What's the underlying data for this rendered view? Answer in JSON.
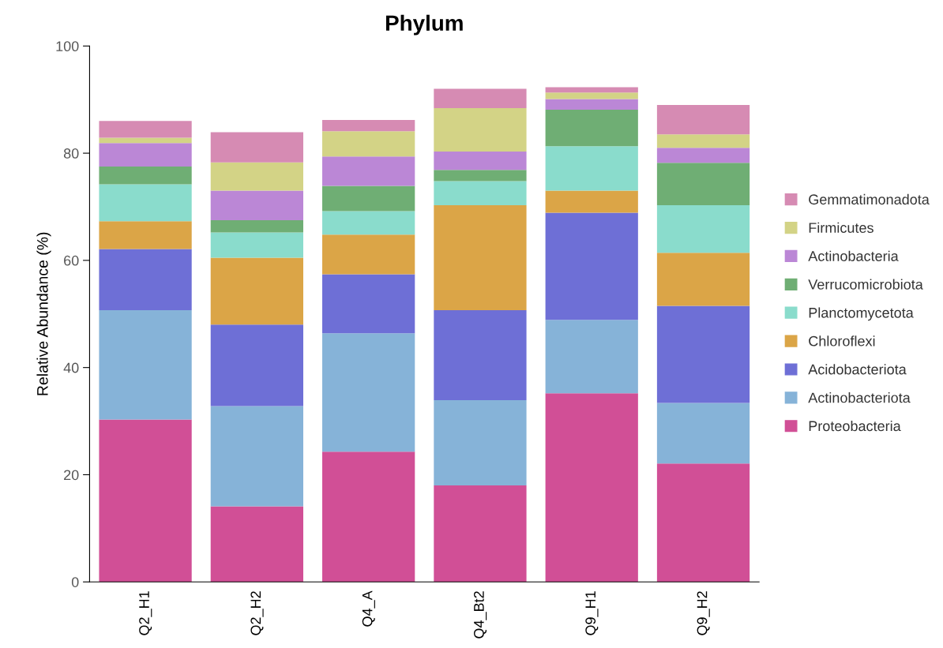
{
  "chart_data": {
    "type": "bar",
    "title": "Phylum",
    "ylabel": "Relative Abundance (%)",
    "stacked": true,
    "categories": [
      "Q2_H1",
      "Q2_H2",
      "Q4_A",
      "Q4_Bt2",
      "Q9_H1",
      "Q9_H2"
    ],
    "series": [
      {
        "name": "Proteobacteria",
        "color": "#d14f96",
        "values": [
          30.3,
          14.1,
          24.3,
          18.0,
          35.2,
          22.1
        ]
      },
      {
        "name": "Actinobacteriota",
        "color": "#86b3d8",
        "values": [
          20.4,
          18.7,
          22.1,
          15.9,
          13.7,
          11.3
        ]
      },
      {
        "name": "Acidobacteriota",
        "color": "#6e6fd6",
        "values": [
          11.4,
          15.2,
          11.0,
          16.8,
          20.0,
          18.1
        ]
      },
      {
        "name": "Chloroflexi",
        "color": "#dba547",
        "values": [
          5.2,
          12.5,
          7.4,
          19.6,
          4.1,
          9.9
        ]
      },
      {
        "name": "Planctomycetota",
        "color": "#8adccc",
        "values": [
          6.9,
          4.7,
          4.4,
          4.5,
          8.3,
          8.9
        ]
      },
      {
        "name": "Verrucomicrobiota",
        "color": "#6fae74",
        "values": [
          3.3,
          2.3,
          4.7,
          2.1,
          6.8,
          7.9
        ]
      },
      {
        "name": "Actinobacteria",
        "color": "#bb87d6",
        "values": [
          4.4,
          5.5,
          5.5,
          3.4,
          2.0,
          2.8
        ]
      },
      {
        "name": "Firmicutes",
        "color": "#d3d386",
        "values": [
          1.0,
          5.3,
          4.7,
          8.1,
          1.2,
          2.5
        ]
      },
      {
        "name": "Gemmatimonadota",
        "color": "#d68bb3",
        "values": [
          3.1,
          5.6,
          2.1,
          3.6,
          1.0,
          5.5
        ]
      }
    ],
    "ylim": [
      0,
      100
    ],
    "yticks": [
      0,
      20,
      40,
      60,
      80,
      100
    ],
    "grid": false,
    "legend": "right"
  }
}
